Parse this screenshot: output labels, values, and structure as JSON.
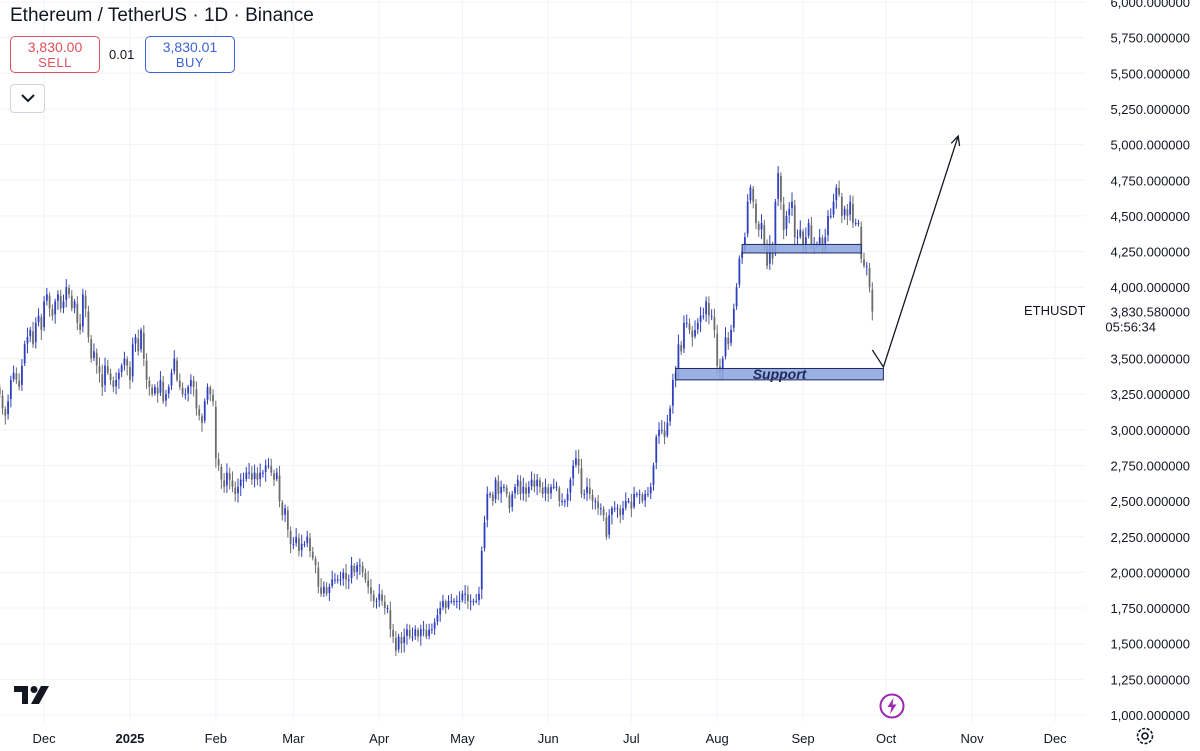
{
  "header": {
    "title": "Ethereum / TetherUS · 1D · Binance",
    "sell_price": "3,830.00",
    "sell_label": "SELL",
    "spread": "0.01",
    "buy_price": "3,830.01",
    "buy_label": "BUY"
  },
  "icons": {
    "collapse": "chevron-down-icon",
    "logo": "tradingview-logo-icon",
    "flash": "lightning-icon",
    "settings": "gear-icon"
  },
  "colors": {
    "up_candle": "#2f3fbf",
    "down_candle": "#6b6b6b",
    "zone_fill": "#8aa3e0",
    "zone_border": "#1e2a5a",
    "grid": "#f0f3fa",
    "axis_text": "#131722",
    "flash": "#9c27b0"
  },
  "price_axis": {
    "min": 1000,
    "max": 6000,
    "labels": [
      "6,000.000000",
      "5,750.000000",
      "5,500.000000",
      "5,250.000000",
      "5,000.000000",
      "4,750.000000",
      "4,500.000000",
      "4,250.000000",
      "4,000.000000",
      "3,500.000000",
      "3,250.000000",
      "3,000.000000",
      "2,750.000000",
      "2,500.000000",
      "2,250.000000",
      "2,000.000000",
      "1,750.000000",
      "1,500.000000",
      "1,250.000000",
      "1,000.000000"
    ],
    "values": [
      6000,
      5750,
      5500,
      5250,
      5000,
      4750,
      4500,
      4250,
      4000,
      3500,
      3250,
      3000,
      2750,
      2500,
      2250,
      2000,
      1750,
      1500,
      1250,
      1000
    ]
  },
  "last_price": {
    "symbol": "ETHUSDT",
    "price": "3,830.580000",
    "countdown": "05:56:34"
  },
  "time_axis": {
    "labels": [
      "Dec",
      "2025",
      "Feb",
      "Mar",
      "Apr",
      "May",
      "Jun",
      "Jul",
      "Aug",
      "Sep",
      "Oct",
      "Nov",
      "Dec"
    ],
    "bold": [
      false,
      true,
      false,
      false,
      false,
      false,
      false,
      false,
      false,
      false,
      false,
      false,
      false
    ]
  },
  "chart_data": {
    "type": "candlestick",
    "title": "Ethereum / TetherUS · 1D · Binance",
    "interval": "1D",
    "ylim": [
      1000,
      6000
    ],
    "x_range": [
      "2024-11-14",
      "2025-12-15"
    ],
    "grid": true,
    "series": [
      {
        "name": "ETHUSDT",
        "approx_daily_closes_segments": [
          {
            "from": "2024-11-14",
            "values": [
              3300,
              3250,
              3150,
              3100,
              3200,
              3350,
              3400,
              3350,
              3300,
              3450
            ]
          },
          {
            "from": "2024-11-24",
            "values": [
              3600,
              3650,
              3700,
              3600,
              3750,
              3800,
              3700,
              3900,
              3950,
              3850,
              3800,
              3900,
              3950,
              3850,
              3900,
              4000,
              3950,
              3850,
              3900,
              3750
            ]
          },
          {
            "from": "2024-12-14",
            "values": [
              3700,
              3950,
              3850,
              3650,
              3500,
              3550,
              3450,
              3400,
              3300,
              3450,
              3400,
              3350,
              3300,
              3350,
              3400,
              3450,
              3500,
              3450
            ]
          },
          {
            "from": "2025-01-01",
            "values": [
              3350,
              3600,
              3650,
              3550,
              3700,
              3500,
              3350,
              3300,
              3250,
              3300,
              3250,
              3350,
              3200,
              3250,
              3300,
              3400,
              3500,
              3350,
              3300,
              3250,
              3250,
              3300,
              3350,
              3300,
              3150,
              3100,
              3050,
              3200,
              3300,
              3250,
              3200
            ]
          },
          {
            "from": "2025-02-01",
            "values": [
              2800,
              2750,
              2650,
              2600,
              2700,
              2650,
              2600,
              2550,
              2600,
              2650,
              2650,
              2700,
              2700,
              2650,
              2700,
              2650,
              2700,
              2700,
              2750,
              2750,
              2700,
              2650,
              2700,
              2500,
              2400,
              2450,
              2300,
              2200
            ]
          },
          {
            "from": "2025-03-01",
            "values": [
              2200,
              2250,
              2150,
              2200,
              2200,
              2250,
              2150,
              2100,
              2050,
              1900,
              1850,
              1900,
              1850,
              1900,
              1950,
              1950,
              1950,
              1950,
              2000,
              1950,
              1950,
              2050,
              2000,
              2050,
              2050,
              2000,
              1950,
              1900,
              1850,
              1800,
              1800
            ]
          },
          {
            "from": "2025-04-01",
            "values": [
              1850,
              1800,
              1750,
              1750,
              1600,
              1550,
              1450,
              1550,
              1500,
              1550,
              1600,
              1550,
              1550,
              1600,
              1550,
              1600,
              1600,
              1550,
              1600,
              1600,
              1650,
              1700,
              1750,
              1800,
              1750,
              1800,
              1800,
              1800,
              1800,
              1800
            ]
          },
          {
            "from": "2025-05-01",
            "values": [
              1850,
              1850,
              1800,
              1800,
              1800,
              1800,
              1850,
              2150,
              2350,
              2550,
              2550,
              2500,
              2650,
              2550,
              2600,
              2600,
              2550,
              2450,
              2550,
              2600,
              2650,
              2550,
              2600,
              2550,
              2600,
              2650,
              2600,
              2650,
              2600,
              2550,
              2600
            ]
          },
          {
            "from": "2025-06-01",
            "values": [
              2550,
              2600,
              2600,
              2600,
              2500,
              2500,
              2500,
              2550,
              2650,
              2750,
              2800,
              2750,
              2550,
              2550,
              2600,
              2550,
              2500,
              2500,
              2450,
              2450,
              2400,
              2250,
              2400,
              2450,
              2450,
              2450,
              2400,
              2450,
              2500,
              2500
            ]
          },
          {
            "from": "2025-07-01",
            "values": [
              2450,
              2550,
              2550,
              2550,
              2500,
              2550,
              2550,
              2600,
              2750,
              2950,
              3000,
              3000,
              2950,
              3050,
              3150,
              3350,
              3400,
              3600,
              3550,
              3750,
              3750,
              3700,
              3650,
              3700,
              3750,
              3800,
              3800,
              3900,
              3800,
              3800,
              3700
            ]
          },
          {
            "from": "2025-08-01",
            "values": [
              3450,
              3400,
              3500,
              3650,
              3600,
              3700,
              3850,
              4000,
              4200,
              4250,
              4350,
              4600,
              4700,
              4600,
              4450,
              4400,
              4450,
              4300,
              4150,
              4300,
              4200,
              4600,
              4800,
              4600,
              4400,
              4500,
              4550,
              4600,
              4350,
              4350,
              4400
            ]
          },
          {
            "from": "2025-09-01",
            "values": [
              4300,
              4350,
              4450,
              4300,
              4300,
              4300,
              4350,
              4300,
              4350,
              4500,
              4500,
              4600,
              4700,
              4650,
              4500,
              4550,
              4500,
              4600,
              4450,
              4450,
              4450,
              4200,
              4150,
              4150,
              4000,
              3830
            ]
          }
        ]
      }
    ],
    "annotations": [
      {
        "type": "zone",
        "label": "",
        "price_range": [
          4240,
          4300
        ],
        "date_range": [
          "2025-08-10",
          "2025-09-22"
        ]
      },
      {
        "type": "zone",
        "label": "Support",
        "price_range": [
          3350,
          3430
        ],
        "date_range": [
          "2025-07-17",
          "2025-09-30"
        ]
      },
      {
        "type": "projection_arrow",
        "points": [
          {
            "date": "2025-09-26",
            "price": 3560
          },
          {
            "date": "2025-09-30",
            "price": 3440
          },
          {
            "date": "2025-10-27",
            "price": 5060
          }
        ]
      }
    ]
  }
}
